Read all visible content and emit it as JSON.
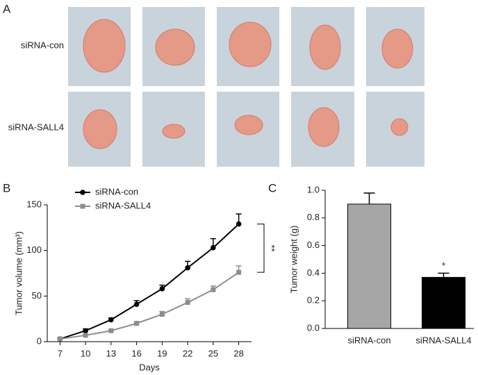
{
  "panel_labels": [
    "A",
    "B",
    "C"
  ],
  "photo_rows": [
    "siRNA-con",
    "siRNA-SALL4"
  ],
  "chart_data": [
    {
      "type": "line",
      "xlabel": "Days",
      "ylabel": "Tumor volume (mm³)",
      "x": [
        7,
        10,
        13,
        16,
        19,
        22,
        25,
        28
      ],
      "series": [
        {
          "name": "siRNA-con",
          "color": "#000000",
          "marker": "circle",
          "values": [
            3,
            12,
            24,
            41,
            58,
            81,
            103,
            129
          ],
          "error": [
            1,
            2,
            2,
            4,
            4,
            7,
            10,
            11
          ]
        },
        {
          "name": "siRNA-SALL4",
          "color": "#8c8c8c",
          "marker": "square",
          "values": [
            3,
            7,
            12,
            20,
            30,
            43,
            57,
            76
          ],
          "error": [
            1,
            1,
            1,
            2,
            3,
            4,
            4,
            7
          ]
        }
      ],
      "xlim": [
        5.5,
        29.5
      ],
      "xticks": [
        7,
        10,
        13,
        16,
        19,
        22,
        25,
        28
      ],
      "ylim": [
        0,
        150
      ],
      "yticks": [
        0,
        50,
        100,
        150
      ],
      "annotation": "**",
      "legend": "upper-left"
    },
    {
      "type": "bar",
      "ylabel": "Tumor weight (g)",
      "categories": [
        "siRNA-con",
        "siRNA-SALL4"
      ],
      "values": [
        0.9,
        0.37
      ],
      "error": [
        0.08,
        0.03
      ],
      "colors": [
        "#a6a6a6",
        "#000000"
      ],
      "ylim": [
        0,
        1
      ],
      "yticks": [
        {
          "value": 0,
          "label": "0.0"
        },
        0.2,
        0.4,
        0.6,
        0.8,
        {
          "value": 1,
          "label": "1.0"
        }
      ],
      "annotation": "*"
    }
  ]
}
